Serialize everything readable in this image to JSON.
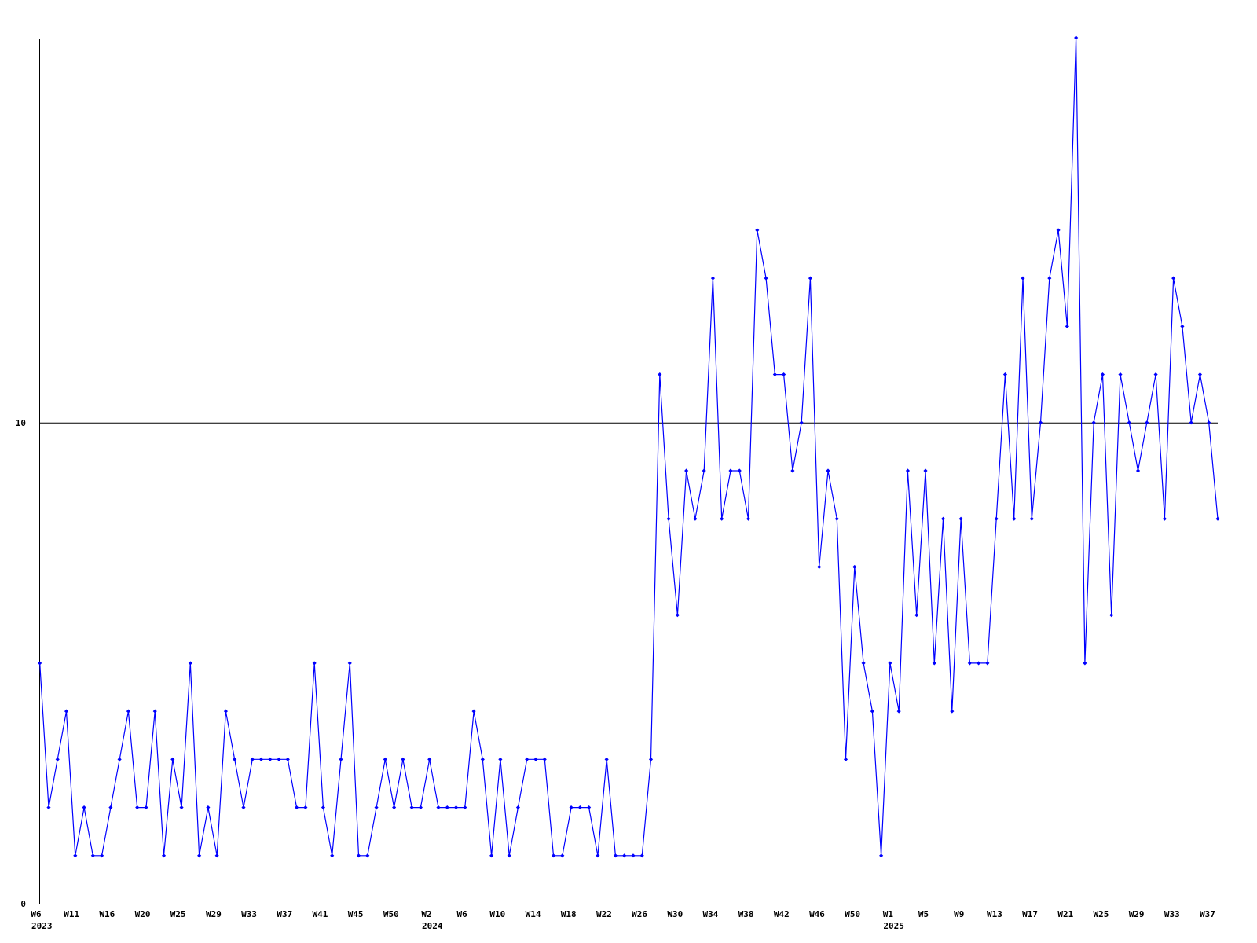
{
  "chart_data": {
    "type": "line",
    "title": "",
    "xlabel": "",
    "ylabel": "",
    "ylim": [
      0,
      18
    ],
    "y_ticks": [
      "0",
      "10"
    ],
    "y_tick_values": [
      0,
      10
    ],
    "grid": "horizontal line at 10 only",
    "legend": "none",
    "colors": {
      "series": "#0000ff",
      "axis": "#000000",
      "background": "#ffffff"
    },
    "x_tick_labels": [
      "W6",
      "W11",
      "W16",
      "W20",
      "W25",
      "W29",
      "W33",
      "W37",
      "W41",
      "W45",
      "W50",
      "W2",
      "W6",
      "W10",
      "W14",
      "W18",
      "W22",
      "W26",
      "W30",
      "W34",
      "W38",
      "W42",
      "W46",
      "W50",
      "W1",
      "W5",
      "W9",
      "W13",
      "W17",
      "W21",
      "W25",
      "W29",
      "W33",
      "W37"
    ],
    "year_labels": [
      {
        "label": "2023",
        "under_tick": 0
      },
      {
        "label": "2024",
        "under_tick": 11
      },
      {
        "label": "2025",
        "under_tick": 24
      }
    ],
    "series": [
      {
        "values": [
          5,
          2,
          3,
          4,
          1,
          2,
          1,
          1,
          2,
          3,
          4,
          2,
          2,
          4,
          1,
          3,
          2,
          5,
          1,
          2,
          1,
          4,
          3,
          2,
          3,
          3,
          3,
          3,
          3,
          2,
          2,
          5,
          2,
          1,
          3,
          5,
          1,
          1,
          2,
          3,
          2,
          3,
          2,
          2,
          3,
          2,
          2,
          2,
          2,
          4,
          3,
          1,
          3,
          1,
          2,
          3,
          3,
          3,
          1,
          1,
          2,
          2,
          2,
          1,
          3,
          1,
          1,
          1,
          1,
          3,
          11,
          8,
          6,
          9,
          8,
          9,
          13,
          8,
          9,
          9,
          8,
          14,
          13,
          11,
          11,
          9,
          10,
          13,
          7,
          9,
          8,
          3,
          7,
          5,
          4,
          1,
          5,
          4,
          9,
          6,
          9,
          5,
          8,
          4,
          8,
          5,
          5,
          5,
          8,
          11,
          8,
          13,
          8,
          10,
          13,
          14,
          12,
          18,
          5,
          10,
          11,
          6,
          11,
          10,
          9,
          10,
          11,
          8,
          13,
          12,
          10,
          11,
          10,
          8
        ]
      }
    ]
  }
}
